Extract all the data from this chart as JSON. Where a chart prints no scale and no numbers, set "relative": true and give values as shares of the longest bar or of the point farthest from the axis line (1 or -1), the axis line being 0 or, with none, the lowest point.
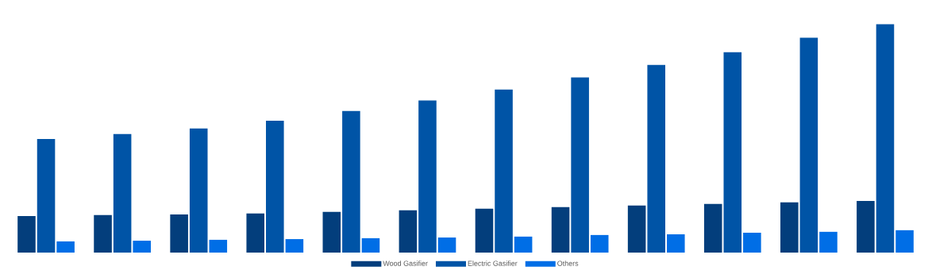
{
  "chart_data": {
    "type": "bar",
    "relative": true,
    "legend": "bottom",
    "categories": [
      null,
      null,
      null,
      null,
      null,
      null,
      null,
      null,
      null,
      null,
      null,
      null
    ],
    "series": [
      {
        "name": "Wood Gasifier",
        "color": "#033e7c",
        "values": [
          0.16,
          0.164,
          0.167,
          0.171,
          0.178,
          0.185,
          0.192,
          0.199,
          0.206,
          0.213,
          0.22,
          0.226
        ]
      },
      {
        "name": "Electric Gasifier",
        "color": "#0054a6",
        "values": [
          0.498,
          0.519,
          0.544,
          0.578,
          0.62,
          0.666,
          0.714,
          0.767,
          0.822,
          0.878,
          0.941,
          1
        ]
      },
      {
        "name": "Others",
        "color": "#006ee6",
        "values": [
          0.049,
          0.052,
          0.056,
          0.059,
          0.063,
          0.066,
          0.07,
          0.077,
          0.08,
          0.087,
          0.091,
          0.098
        ]
      }
    ]
  }
}
